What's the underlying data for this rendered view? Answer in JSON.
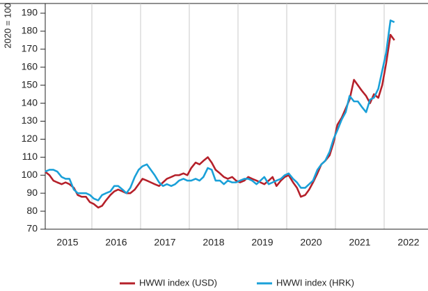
{
  "chart_data": {
    "type": "line",
    "ylabel": "2020 = 100",
    "ylim": [
      70,
      190
    ],
    "yticks": [
      70,
      80,
      90,
      100,
      110,
      120,
      130,
      140,
      150,
      160,
      170,
      180,
      190
    ],
    "xlim": [
      2015,
      2022.9
    ],
    "xticks": [
      {
        "value": 2015.5,
        "label": "2015"
      },
      {
        "value": 2016.5,
        "label": "2016"
      },
      {
        "value": 2017.5,
        "label": "2017"
      },
      {
        "value": 2018.5,
        "label": "2018"
      },
      {
        "value": 2019.5,
        "label": "2019"
      },
      {
        "value": 2020.5,
        "label": "2020"
      },
      {
        "value": 2021.5,
        "label": "2021"
      },
      {
        "value": 2022.5,
        "label": "2022"
      }
    ],
    "xgrid": [
      2016,
      2017,
      2018,
      2019,
      2020,
      2021,
      2022
    ],
    "legend": "bottom",
    "x": [
      2015.04,
      2015.13,
      2015.21,
      2015.29,
      2015.38,
      2015.46,
      2015.54,
      2015.63,
      2015.71,
      2015.79,
      2015.88,
      2015.96,
      2016.04,
      2016.13,
      2016.21,
      2016.29,
      2016.38,
      2016.46,
      2016.54,
      2016.63,
      2016.71,
      2016.79,
      2016.88,
      2016.96,
      2017.04,
      2017.13,
      2017.21,
      2017.29,
      2017.38,
      2017.46,
      2017.54,
      2017.63,
      2017.71,
      2017.79,
      2017.88,
      2017.96,
      2018.04,
      2018.13,
      2018.21,
      2018.29,
      2018.38,
      2018.46,
      2018.54,
      2018.63,
      2018.71,
      2018.79,
      2018.88,
      2018.96,
      2019.04,
      2019.13,
      2019.21,
      2019.29,
      2019.38,
      2019.46,
      2019.54,
      2019.63,
      2019.71,
      2019.79,
      2019.88,
      2019.96,
      2020.04,
      2020.13,
      2020.21,
      2020.29,
      2020.38,
      2020.46,
      2020.54,
      2020.63,
      2020.71,
      2020.79,
      2020.88,
      2020.96,
      2021.04,
      2021.13,
      2021.21,
      2021.29,
      2021.38,
      2021.46,
      2021.54,
      2021.63,
      2021.71,
      2021.79,
      2021.88,
      2021.96,
      2022.04,
      2022.13,
      2022.21
    ],
    "series": [
      {
        "name": "HWWI index (USD)",
        "color": "#b5202a",
        "values": [
          102,
          100,
          97,
          96,
          95,
          96,
          95,
          93,
          89,
          88,
          88,
          85,
          84,
          82,
          83,
          86,
          89,
          91,
          92,
          91,
          90,
          90,
          92,
          95,
          98,
          97,
          96,
          95,
          94,
          96,
          98,
          99,
          100,
          100,
          101,
          100,
          104,
          107,
          106,
          108,
          110,
          107,
          103,
          101,
          99,
          98,
          99,
          97,
          96,
          97,
          99,
          98,
          97,
          96,
          95,
          97,
          99,
          94,
          97,
          99,
          100,
          96,
          93,
          88,
          89,
          92,
          96,
          101,
          106,
          108,
          111,
          118,
          128,
          132,
          137,
          142,
          153,
          150,
          147,
          144,
          140,
          145,
          143,
          150,
          162,
          178,
          175
        ]
      },
      {
        "name": "HWWI index (HRK)",
        "color": "#1aa0d8",
        "values": [
          102,
          103,
          103,
          102,
          99,
          98,
          98,
          92,
          90,
          90,
          90,
          89,
          87,
          86,
          89,
          90,
          91,
          94,
          94,
          92,
          90,
          93,
          99,
          103,
          105,
          106,
          103,
          100,
          96,
          94,
          95,
          94,
          95,
          97,
          98,
          97,
          97,
          98,
          97,
          99,
          104,
          103,
          97,
          97,
          95,
          97,
          96,
          96,
          97,
          98,
          98,
          97,
          95,
          97,
          99,
          95,
          96,
          97,
          98,
          100,
          101,
          98,
          96,
          93,
          93,
          95,
          97,
          103,
          106,
          108,
          113,
          120,
          125,
          131,
          135,
          144,
          141,
          141,
          138,
          135,
          142,
          143,
          148,
          158,
          168,
          186,
          185
        ]
      }
    ]
  }
}
